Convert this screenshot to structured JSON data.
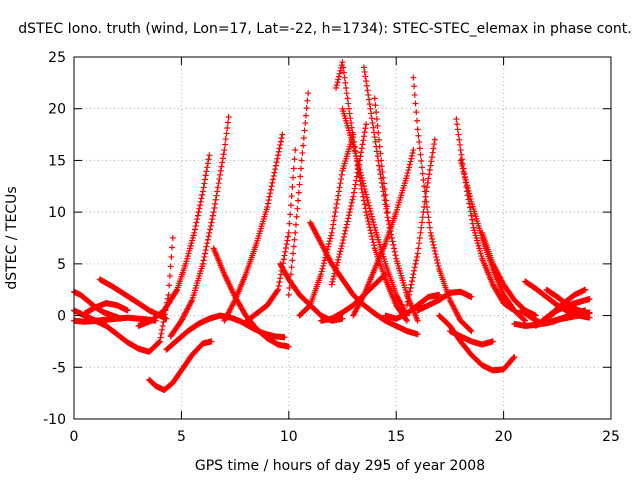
{
  "chart_data": {
    "type": "scatter",
    "title": "dSTEC Iono. truth (wind, Lon=17, Lat=-22, h=1734): STEC-STEC_elemax in phase cont.",
    "xlabel": "GPS time / hours of day 295 of year 2008",
    "ylabel": "dSTEC  / TECUs",
    "xlim": [
      0,
      25
    ],
    "ylim": [
      -10,
      25
    ],
    "xticks": [
      0,
      5,
      10,
      15,
      20,
      25
    ],
    "yticks": [
      -10,
      -5,
      0,
      5,
      10,
      15,
      20,
      25
    ],
    "grid": true,
    "marker": "+",
    "color": "#ff0000",
    "series": [
      {
        "x": [
          0.0,
          0.5,
          1.0,
          1.5,
          2.0,
          2.5,
          3.0,
          3.5,
          4.0,
          4.4,
          4.6
        ],
        "y": [
          0.5,
          0.0,
          -0.5,
          -1.0,
          -1.8,
          -2.6,
          -3.2,
          -3.5,
          -2.5,
          2.0,
          7.5
        ]
      },
      {
        "x": [
          0.0,
          0.3,
          0.6,
          1.0,
          1.4,
          1.8,
          2.2
        ],
        "y": [
          2.3,
          2.0,
          1.5,
          0.8,
          0.3,
          0.0,
          -0.3
        ]
      },
      {
        "x": [
          0.0,
          0.5,
          1.0,
          1.5,
          2.0,
          2.5,
          3.0,
          3.5,
          3.8
        ],
        "y": [
          -0.5,
          -0.6,
          -0.5,
          -0.4,
          -0.3,
          -0.2,
          -0.3,
          -0.4,
          -0.5
        ]
      },
      {
        "x": [
          1.2,
          1.8,
          2.4,
          3.0,
          3.5,
          4.0,
          4.3
        ],
        "y": [
          3.5,
          2.8,
          2.0,
          1.2,
          0.5,
          0.0,
          -0.3
        ]
      },
      {
        "x": [
          0.5,
          1.0,
          1.5,
          2.0,
          2.5
        ],
        "y": [
          0.2,
          0.8,
          1.2,
          1.0,
          0.5
        ]
      },
      {
        "x": [
          3.5,
          3.8,
          4.2,
          4.6,
          5.0,
          5.5,
          6.0,
          6.4
        ],
        "y": [
          -6.2,
          -6.8,
          -7.2,
          -6.5,
          -5.3,
          -3.8,
          -2.7,
          -2.5
        ]
      },
      {
        "x": [
          3.0,
          3.6,
          4.2,
          4.8,
          5.2,
          5.6,
          6.0,
          6.3
        ],
        "y": [
          -1.0,
          -0.5,
          0.5,
          2.5,
          5.0,
          8.0,
          12.0,
          15.5
        ]
      },
      {
        "x": [
          4.5,
          5.0,
          5.5,
          6.0,
          6.5,
          7.0,
          7.2
        ],
        "y": [
          -2.0,
          -0.5,
          1.5,
          5.0,
          10.0,
          16.0,
          19.2
        ]
      },
      {
        "x": [
          4.3,
          4.8,
          5.3,
          5.8,
          6.3,
          6.8,
          7.3,
          7.8,
          8.3,
          8.8,
          9.3,
          9.8
        ],
        "y": [
          -3.3,
          -2.4,
          -1.5,
          -0.8,
          -0.3,
          0.0,
          -0.2,
          -0.6,
          -1.2,
          -1.7,
          -2.0,
          -2.1
        ]
      },
      {
        "x": [
          6.5,
          7.0,
          7.5,
          8.0,
          8.5,
          9.0,
          9.5,
          10.0
        ],
        "y": [
          6.5,
          4.0,
          1.8,
          0.0,
          -1.3,
          -2.2,
          -2.8,
          -3.0
        ]
      },
      {
        "x": [
          7.0,
          7.5,
          8.0,
          8.5,
          9.0,
          9.4,
          9.7
        ],
        "y": [
          -0.5,
          1.5,
          4.0,
          7.0,
          10.5,
          14.5,
          17.5
        ]
      },
      {
        "x": [
          9.6,
          10.0,
          10.5,
          11.0,
          11.5,
          12.0,
          12.5
        ],
        "y": [
          5.0,
          3.5,
          2.0,
          1.0,
          0.0,
          -0.5,
          -0.3
        ]
      },
      {
        "x": [
          10.0,
          10.3,
          10.6,
          10.9
        ],
        "y": [
          2.0,
          8.0,
          15.0,
          21.5
        ]
      },
      {
        "x": [
          8.0,
          8.5,
          9.0,
          9.5,
          10.0,
          10.3
        ],
        "y": [
          -0.6,
          0.2,
          1.0,
          2.5,
          8.0,
          16.0
        ]
      },
      {
        "x": [
          10.5,
          11.0,
          11.5,
          12.0,
          12.5,
          13.0
        ],
        "y": [
          0.0,
          1.0,
          4.0,
          8.0,
          14.0,
          17.5
        ]
      },
      {
        "x": [
          12.5,
          13.0,
          13.5,
          14.0,
          14.5,
          15.0,
          15.5
        ],
        "y": [
          20.0,
          16.5,
          12.5,
          8.5,
          5.0,
          2.0,
          0.0
        ]
      },
      {
        "x": [
          12.2,
          12.5,
          12.8,
          13.2,
          13.6,
          14.0,
          14.5,
          15.0,
          15.5
        ],
        "y": [
          22.0,
          24.5,
          20.0,
          14.5,
          10.0,
          6.5,
          3.5,
          1.0,
          -0.5
        ]
      },
      {
        "x": [
          13.5,
          13.8,
          14.2,
          14.6,
          15.0,
          15.5,
          16.0
        ],
        "y": [
          24.0,
          20.0,
          14.5,
          9.5,
          5.5,
          2.0,
          -0.5
        ]
      },
      {
        "x": [
          14.0,
          14.3,
          14.6
        ],
        "y": [
          21.0,
          15.0,
          10.0
        ]
      },
      {
        "x": [
          11.0,
          11.5,
          12.0,
          12.5,
          13.0,
          13.5,
          14.0,
          14.5,
          15.0,
          15.5,
          16.0
        ],
        "y": [
          9.0,
          7.0,
          5.0,
          3.5,
          2.0,
          1.0,
          0.2,
          -0.5,
          -1.0,
          -1.5,
          -1.8
        ]
      },
      {
        "x": [
          12.0,
          12.5,
          13.0,
          13.3,
          13.6
        ],
        "y": [
          3.0,
          7.0,
          11.5,
          15.0,
          18.5
        ]
      },
      {
        "x": [
          11.5,
          12.0,
          12.5,
          13.0,
          13.5,
          14.0,
          14.5
        ],
        "y": [
          -0.5,
          -0.3,
          0.3,
          1.0,
          2.0,
          3.0,
          4.0
        ]
      },
      {
        "x": [
          13.0,
          13.5,
          14.0,
          14.5,
          15.0,
          15.5,
          15.8
        ],
        "y": [
          0.0,
          2.0,
          4.5,
          7.0,
          10.0,
          13.5,
          16.0
        ]
      },
      {
        "x": [
          14.5,
          15.0,
          15.5,
          16.0,
          16.5,
          17.0
        ],
        "y": [
          0.0,
          -0.3,
          0.2,
          1.0,
          1.8,
          2.0
        ]
      },
      {
        "x": [
          15.8,
          16.0,
          16.3,
          16.6,
          17.0,
          17.5,
          18.0,
          18.5
        ],
        "y": [
          23.0,
          18.0,
          12.5,
          8.0,
          4.5,
          1.5,
          -0.5,
          -1.5
        ]
      },
      {
        "x": [
          15.5,
          16.0,
          16.4,
          16.8
        ],
        "y": [
          1.0,
          6.0,
          12.0,
          17.0
        ]
      },
      {
        "x": [
          17.8,
          18.0,
          18.3,
          18.6,
          19.0,
          19.5,
          20.0,
          20.5
        ],
        "y": [
          19.0,
          16.0,
          12.0,
          8.5,
          5.5,
          3.0,
          1.2,
          0.5
        ]
      },
      {
        "x": [
          18.0,
          18.5,
          19.0,
          19.5,
          20.0,
          20.5,
          21.0
        ],
        "y": [
          15.0,
          11.0,
          7.5,
          4.5,
          2.0,
          0.5,
          -0.5
        ]
      },
      {
        "x": [
          16.0,
          16.5,
          17.0,
          17.5,
          18.0,
          18.5
        ],
        "y": [
          0.5,
          1.0,
          1.5,
          2.2,
          2.3,
          1.8
        ]
      },
      {
        "x": [
          17.0,
          17.5,
          18.0,
          18.5,
          19.0,
          19.5,
          20.0,
          20.5
        ],
        "y": [
          0.0,
          -1.0,
          -2.5,
          -3.8,
          -4.8,
          -5.3,
          -5.2,
          -4.0
        ]
      },
      {
        "x": [
          17.5,
          18.0,
          18.5,
          19.0,
          19.5
        ],
        "y": [
          -1.5,
          -2.0,
          -2.5,
          -2.8,
          -2.5
        ]
      },
      {
        "x": [
          19.0,
          19.5,
          20.0,
          20.5,
          21.0,
          21.5
        ],
        "y": [
          8.0,
          5.0,
          3.0,
          1.5,
          0.5,
          0.0
        ]
      },
      {
        "x": [
          20.5,
          21.0,
          21.5,
          22.0,
          22.5,
          23.0,
          23.5,
          24.0
        ],
        "y": [
          -0.8,
          -1.0,
          -0.9,
          -0.7,
          -0.4,
          -0.2,
          0.0,
          0.3
        ]
      },
      {
        "x": [
          21.0,
          21.5,
          22.0,
          22.5,
          23.0,
          23.5,
          24.0
        ],
        "y": [
          3.3,
          2.6,
          1.8,
          1.0,
          0.4,
          0.0,
          -0.2
        ]
      },
      {
        "x": [
          21.5,
          22.0,
          22.5,
          23.0,
          23.5,
          24.0
        ],
        "y": [
          -1.0,
          -0.3,
          0.5,
          1.0,
          1.3,
          1.6
        ]
      },
      {
        "x": [
          22.0,
          22.5,
          23.0,
          23.5,
          24.0
        ],
        "y": [
          2.5,
          1.8,
          1.0,
          0.5,
          0.2
        ]
      },
      {
        "x": [
          21.8,
          22.3,
          22.8,
          23.3,
          23.8
        ],
        "y": [
          -0.5,
          0.3,
          1.2,
          2.0,
          2.5
        ]
      },
      {
        "x": [
          20.8,
          21.3,
          21.8,
          22.3,
          22.8,
          23.3,
          23.8
        ],
        "y": [
          0.5,
          -0.2,
          -0.8,
          -0.6,
          -0.2,
          0.2,
          0.5
        ]
      }
    ]
  }
}
